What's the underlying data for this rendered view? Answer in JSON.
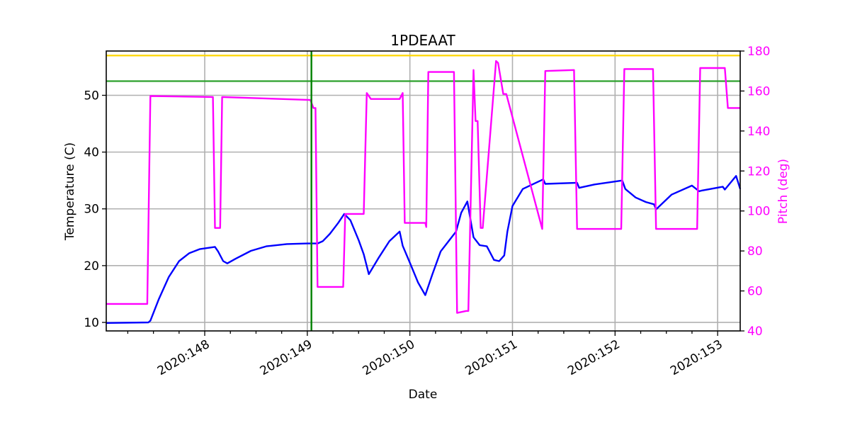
{
  "chart_data": {
    "type": "line",
    "title": "1PDEAAT",
    "xlabel": "Date",
    "ylabel": "Temperature (C)",
    "y2label": "Pitch (deg)",
    "xlim": [
      147.04,
      153.22
    ],
    "ylim": [
      8.5,
      57.8
    ],
    "y2lim": [
      40,
      180
    ],
    "x_ticks": [
      148,
      149,
      150,
      151,
      152,
      153
    ],
    "x_tick_labels": [
      "2020:148",
      "2020:149",
      "2020:150",
      "2020:151",
      "2020:152",
      "2020:153"
    ],
    "y_ticks": [
      10,
      20,
      30,
      40,
      50
    ],
    "y2_ticks": [
      40,
      60,
      80,
      100,
      120,
      140,
      160,
      180
    ],
    "grid": true,
    "colors": {
      "temperature": "#0000ff",
      "pitch": "#ff00ff",
      "planning_limit": "#ffd700",
      "caution_limit": "#2ca02c",
      "now_marker": "#008000",
      "grid": "#b0b0b0",
      "right_axis": "#ff00ff"
    },
    "hlines": [
      {
        "name": "yellow limit",
        "value": 57.0,
        "axis": "temperature",
        "color": "#ffd700"
      },
      {
        "name": "planning limit",
        "value": 52.5,
        "axis": "temperature",
        "color": "#2ca02c"
      }
    ],
    "vlines": [
      {
        "name": "current time",
        "x": 149.04,
        "color": "#008000"
      }
    ],
    "series": [
      {
        "name": "Temperature",
        "axis": "left",
        "color": "#0000ff",
        "x": [
          147.04,
          147.45,
          147.47,
          147.55,
          147.65,
          147.75,
          147.85,
          147.95,
          148.1,
          148.13,
          148.18,
          148.22,
          148.3,
          148.45,
          148.6,
          148.8,
          149.0,
          149.1,
          149.15,
          149.22,
          149.3,
          149.36,
          149.42,
          149.5,
          149.55,
          149.6,
          149.7,
          149.8,
          149.9,
          149.93,
          150.0,
          150.08,
          150.15,
          150.22,
          150.3,
          150.45,
          150.5,
          150.56,
          150.62,
          150.68,
          150.75,
          150.82,
          150.87,
          150.92,
          150.95,
          151.0,
          151.1,
          151.3,
          151.32,
          151.63,
          151.65,
          151.8,
          152.07,
          152.1,
          152.2,
          152.3,
          152.38,
          152.4,
          152.55,
          152.75,
          152.82,
          152.84,
          153.05,
          153.07,
          153.18,
          153.22
        ],
        "values": [
          9.9,
          10.0,
          10.3,
          14.0,
          18.0,
          20.8,
          22.2,
          22.9,
          23.3,
          22.5,
          20.8,
          20.4,
          21.2,
          22.6,
          23.4,
          23.8,
          23.9,
          23.9,
          24.3,
          25.6,
          27.5,
          29.1,
          28.0,
          24.5,
          22.0,
          18.5,
          21.5,
          24.3,
          26.0,
          23.5,
          20.5,
          17.0,
          14.8,
          18.5,
          22.5,
          26.0,
          29.3,
          31.3,
          25.0,
          23.6,
          23.4,
          21.0,
          20.8,
          21.8,
          26.0,
          30.5,
          33.5,
          35.2,
          34.4,
          34.6,
          33.7,
          34.3,
          35.0,
          33.5,
          32.0,
          31.2,
          30.8,
          29.9,
          32.5,
          34.1,
          33.1,
          33.2,
          33.9,
          33.4,
          35.8,
          33.5
        ]
      },
      {
        "name": "Pitch",
        "axis": "right",
        "color": "#ff00ff",
        "x": [
          147.04,
          147.44,
          147.47,
          148.08,
          148.1,
          148.15,
          148.17,
          149.03,
          149.06,
          149.08,
          149.1,
          149.15,
          149.35,
          149.37,
          149.55,
          149.58,
          149.62,
          149.9,
          149.93,
          149.95,
          150.15,
          150.16,
          150.18,
          150.43,
          150.46,
          150.55,
          150.57,
          150.62,
          150.64,
          150.66,
          150.69,
          150.71,
          150.84,
          150.86,
          150.91,
          150.94,
          151.29,
          151.32,
          151.6,
          151.63,
          152.06,
          152.09,
          152.37,
          152.4,
          152.8,
          152.83,
          153.07,
          153.1,
          153.22
        ],
        "values": [
          53.5,
          53.5,
          157.5,
          157.0,
          91.5,
          91.5,
          157.0,
          155.5,
          151.5,
          151.5,
          62.0,
          62.0,
          62.0,
          98.5,
          98.5,
          159.0,
          156.0,
          156.0,
          159.0,
          94.0,
          94.0,
          92.0,
          169.5,
          169.5,
          49.0,
          50.0,
          50.0,
          170.5,
          145.0,
          145.0,
          91.5,
          91.5,
          175.0,
          174.0,
          158.5,
          158.5,
          91.0,
          170.0,
          170.5,
          91.0,
          91.0,
          171.0,
          171.0,
          91.0,
          91.0,
          171.5,
          171.5,
          151.5,
          151.5
        ]
      }
    ]
  }
}
